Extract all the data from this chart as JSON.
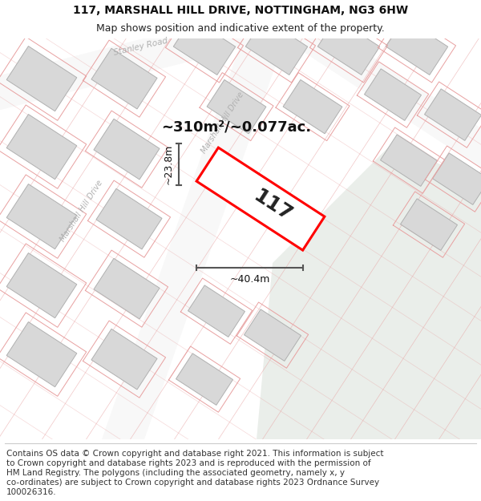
{
  "title": "117, MARSHALL HILL DRIVE, NOTTINGHAM, NG3 6HW",
  "subtitle": "Map shows position and indicative extent of the property.",
  "area_text": "~310m²/~0.077ac.",
  "width_text": "~40.4m",
  "height_text": "~23.8m",
  "property_number": "117",
  "footer_lines": [
    "Contains OS data © Crown copyright and database right 2021. This information is subject",
    "to Crown copyright and database rights 2023 and is reproduced with the permission of",
    "HM Land Registry. The polygons (including the associated geometry, namely x, y",
    "co-ordinates) are subject to Crown copyright and database rights 2023 Ordnance Survey",
    "100026316."
  ],
  "bg_color": "#ffffff",
  "map_bg": "#ffffff",
  "green_area_color": "#eaeeea",
  "building_fill": "#d8d8d8",
  "building_edge": "#b0b0b0",
  "prop_boundary_color": "#e8a0a0",
  "property_edge": "#ff0000",
  "dim_line_color": "#555555",
  "street_label_color": "#b0b0b0",
  "title_fontsize": 10,
  "subtitle_fontsize": 9,
  "footer_fontsize": 7.5,
  "area_fontsize": 13,
  "dim_fontsize": 9,
  "prop_num_fontsize": 18
}
